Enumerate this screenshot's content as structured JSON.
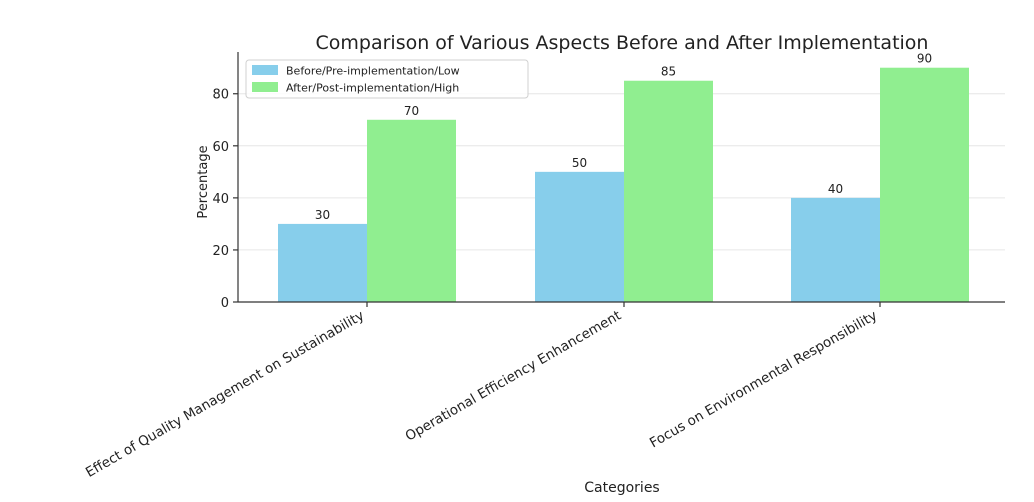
{
  "chart_data": {
    "type": "bar",
    "title": "Comparison of Various Aspects Before and After Implementation",
    "xlabel": "Categories",
    "ylabel": "Percentage",
    "categories": [
      "Effect of Quality Management on Sustainability",
      "Operational Efficiency Enhancement",
      "Focus on Environmental Responsibility"
    ],
    "series": [
      {
        "name": "Before/Pre-implementation/Low",
        "values": [
          30,
          50,
          40
        ],
        "color": "#87CEEB"
      },
      {
        "name": "After/Post-implementation/High",
        "values": [
          70,
          85,
          90
        ],
        "color": "#90EE90"
      }
    ],
    "yticks": [
      0,
      20,
      40,
      60,
      80
    ],
    "ylim": [
      0,
      94.5
    ],
    "grid": true,
    "legend_position": "top-left"
  }
}
